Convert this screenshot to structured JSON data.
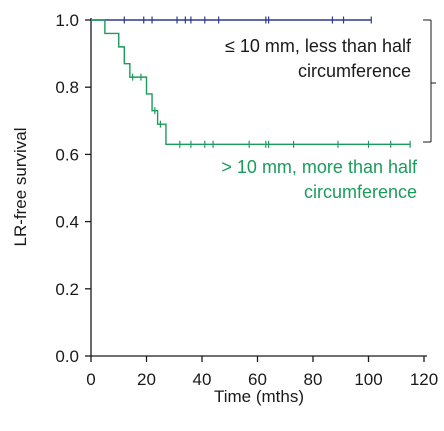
{
  "chart_data": {
    "type": "line",
    "title": "",
    "xlabel": "Time (mths)",
    "ylabel": "LR-free survival",
    "xlim": [
      0,
      120
    ],
    "ylim": [
      0,
      1.0
    ],
    "x_ticks": [
      0,
      20,
      40,
      60,
      80,
      100,
      120
    ],
    "x_tick_labels": [
      "0",
      "20",
      "40",
      "60",
      "80",
      "100",
      "120"
    ],
    "y_ticks": [
      0,
      0.2,
      0.4,
      0.6,
      0.8,
      1.0
    ],
    "y_tick_labels": [
      "0.0",
      "0.2",
      "0.4",
      "0.6",
      "0.8",
      "1.0"
    ],
    "grid": false,
    "legend": "none",
    "series": [
      {
        "name": "",
        "color": "#2b3990",
        "steps": [
          [
            0,
            1.0
          ],
          [
            101,
            1.0
          ]
        ],
        "censored": [
          12,
          19,
          22,
          31,
          34,
          36,
          41,
          46,
          63,
          64,
          87,
          91,
          101
        ]
      },
      {
        "name": "",
        "color": "#1a9c5b",
        "steps": [
          [
            0,
            1.0
          ],
          [
            5,
            1.0
          ],
          [
            5,
            0.96
          ],
          [
            10,
            0.96
          ],
          [
            10,
            0.92
          ],
          [
            12,
            0.92
          ],
          [
            12,
            0.87
          ],
          [
            14,
            0.87
          ],
          [
            14,
            0.83
          ],
          [
            20,
            0.83
          ],
          [
            20,
            0.78
          ],
          [
            22,
            0.78
          ],
          [
            22,
            0.73
          ],
          [
            24,
            0.73
          ],
          [
            24,
            0.69
          ],
          [
            27,
            0.69
          ],
          [
            27,
            0.63
          ],
          [
            115,
            0.63
          ]
        ],
        "censored": [
          15,
          18,
          23,
          25,
          32,
          36,
          41,
          44,
          57,
          63,
          64,
          73,
          89,
          100,
          108,
          115
        ]
      }
    ],
    "annotations": [
      {
        "lines": [
          "≤ 10 mm, less than half",
          "circumference"
        ],
        "color": "#1a1a1a"
      },
      {
        "lines": [
          "> 10 mm, more than half",
          "circumference"
        ],
        "color": "#1a9c5b"
      }
    ]
  }
}
